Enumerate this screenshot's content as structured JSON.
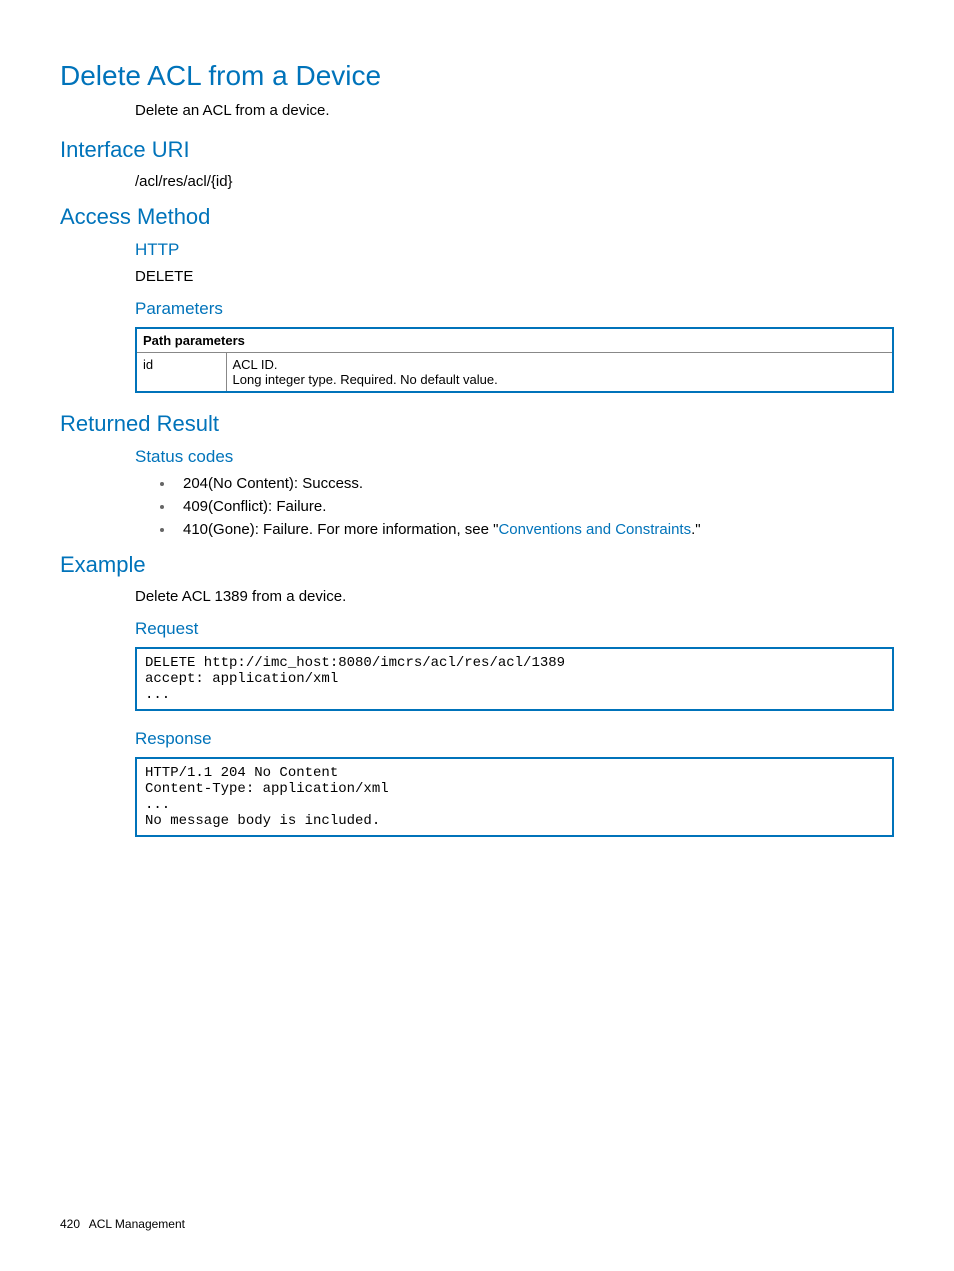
{
  "title": "Delete ACL from a Device",
  "subtitle": "Delete an ACL from a device.",
  "sections": {
    "interface_uri": {
      "heading": "Interface URI",
      "value": "/acl/res/acl/{id}"
    },
    "access_method": {
      "heading": "Access Method",
      "http_heading": "HTTP",
      "http_value": "DELETE",
      "parameters_heading": "Parameters",
      "table": {
        "header": "Path parameters",
        "row": {
          "name": "id",
          "desc1": "ACL ID.",
          "desc2": "Long integer type. Required. No default value."
        }
      }
    },
    "returned_result": {
      "heading": "Returned Result",
      "status_heading": "Status codes",
      "items": {
        "a": "204(No Content): Success.",
        "b": "409(Conflict): Failure.",
        "c_pre": "410(Gone): Failure. For more information, see \"",
        "c_link": "Conventions and Constraints",
        "c_post": ".\""
      }
    },
    "example": {
      "heading": "Example",
      "intro": "Delete ACL 1389 from a device.",
      "request_heading": "Request",
      "request_code": "DELETE http://imc_host:8080/imcrs/acl/res/acl/1389\naccept: application/xml\n...",
      "response_heading": "Response",
      "response_code": "HTTP/1.1 204 No Content\nContent-Type: application/xml\n...\nNo message body is included."
    }
  },
  "footer": {
    "page": "420",
    "section": "ACL Management"
  }
}
